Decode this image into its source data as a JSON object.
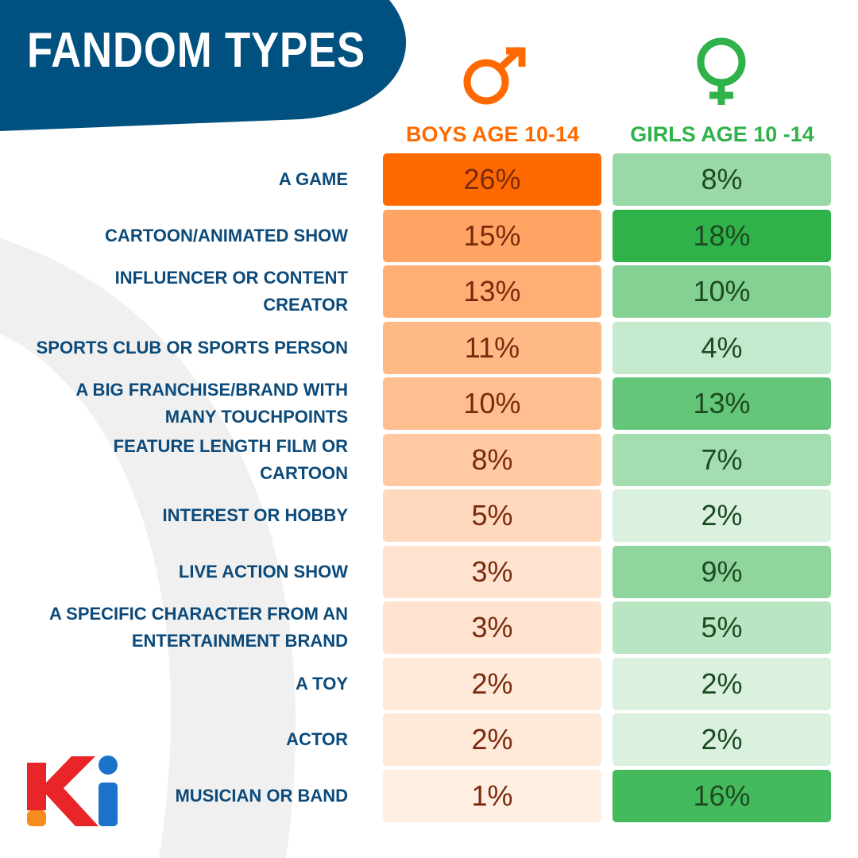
{
  "chart_data": {
    "type": "heatmap",
    "title": "FANDOM TYPES",
    "categories": [
      "A GAME",
      "CARTOON/ANIMATED SHOW",
      "INFLUENCER OR CONTENT CREATOR",
      "SPORTS CLUB OR SPORTS PERSON",
      "A BIG FRANCHISE/BRAND WITH MANY TOUCHPOINTS",
      "FEATURE LENGTH FILM OR CARTOON",
      "INTEREST OR HOBBY",
      "LIVE ACTION SHOW",
      "A SPECIFIC CHARACTER FROM AN ENTERTAINMENT BRAND",
      "A TOY",
      "ACTOR",
      "MUSICIAN OR BAND"
    ],
    "series": [
      {
        "name": "BOYS AGE 10-14",
        "color": "#ff6a00",
        "values": [
          26,
          15,
          13,
          11,
          10,
          8,
          5,
          3,
          3,
          2,
          2,
          1
        ],
        "value_labels": [
          "26%",
          "15%",
          "13%",
          "11%",
          "10%",
          "8%",
          "5%",
          "3%",
          "3%",
          "2%",
          "2%",
          "1%"
        ]
      },
      {
        "name": "GIRLS AGE 10 -14",
        "color": "#2fb24a",
        "values": [
          8,
          18,
          10,
          4,
          13,
          7,
          2,
          9,
          5,
          2,
          2,
          16
        ],
        "value_labels": [
          "8%",
          "18%",
          "10%",
          "4%",
          "13%",
          "7%",
          "2%",
          "9%",
          "5%",
          "2%",
          "2%",
          "16%"
        ]
      }
    ]
  }
}
